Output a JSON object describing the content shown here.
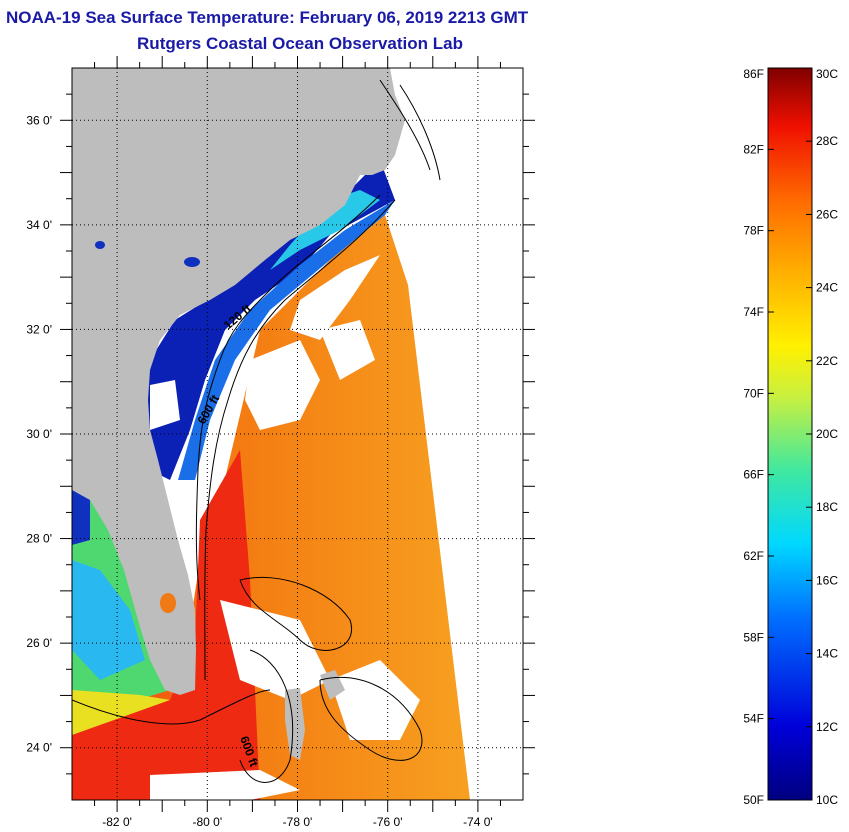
{
  "header": {
    "title": "NOAA-19 Sea Surface Temperature:  February 06, 2019 2213 GMT",
    "subtitle": "Rutgers Coastal Ocean Observation Lab"
  },
  "map": {
    "lon_range": [
      -83,
      -73
    ],
    "lat_range": [
      23,
      37
    ],
    "lon_labels": [
      {
        "lon": -82,
        "label": "-82 0'"
      },
      {
        "lon": -80,
        "label": "-80 0'"
      },
      {
        "lon": -78,
        "label": "-78 0'"
      },
      {
        "lon": -76,
        "label": "-76 0'"
      },
      {
        "lon": -74,
        "label": "-74 0'"
      }
    ],
    "lat_labels": [
      {
        "lat": 36,
        "label": "36 0'"
      },
      {
        "lat": 34,
        "label": "34 0'"
      },
      {
        "lat": 32,
        "label": "32 0'"
      },
      {
        "lat": 30,
        "label": "30 0'"
      },
      {
        "lat": 28,
        "label": "28 0'"
      },
      {
        "lat": 26,
        "label": "26 0'"
      },
      {
        "lat": 24,
        "label": "24 0'"
      }
    ],
    "contour_labels": {
      "shelf_120": "120 ft",
      "shelf_600": "600 ft",
      "south_600": "600 ft"
    },
    "colors": {
      "land": "#bdbdbd",
      "cloud": "#ffffff",
      "cold": "#0a1fb0",
      "warm": "#f57a10",
      "hot": "#ef2a10"
    }
  },
  "colorbar": {
    "left_labels": [
      "86F",
      "82F",
      "78F",
      "74F",
      "70F",
      "66F",
      "62F",
      "58F",
      "54F",
      "50F"
    ],
    "right_labels": [
      "30C",
      "28C",
      "26C",
      "24C",
      "22C",
      "20C",
      "18C",
      "16C",
      "14C",
      "12C",
      "10C"
    ]
  }
}
